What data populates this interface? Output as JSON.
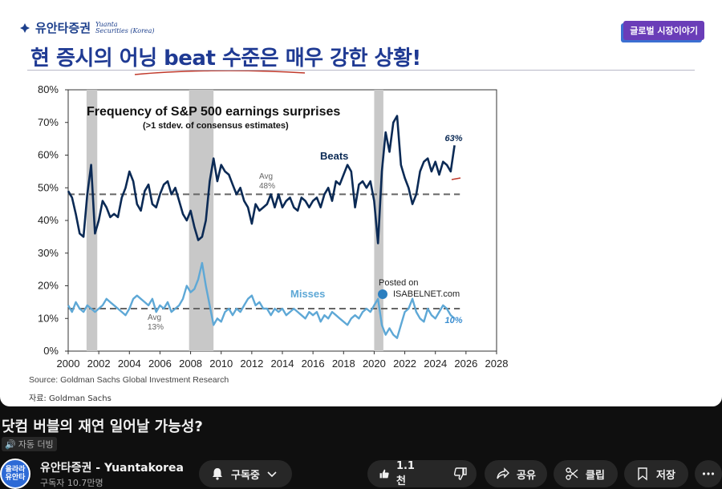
{
  "slide": {
    "logo_name": "유안타증권",
    "logo_en_1": "Yuanta",
    "logo_en_2": "Securities (Korea)",
    "badge": "글로벌 시장이야기",
    "headline": "현 증시의 어닝 beat 수준은 매우 강한 상황!",
    "source_note": "자료: Goldman Sachs"
  },
  "chart_data": {
    "type": "line",
    "title": "Frequency of S&P 500 earnings surprises",
    "subtitle": "(>1 stdev. of consensus estimates)",
    "source": "Source: Goldman Sachs Global Investment Research",
    "watermark_1": "Posted on",
    "watermark_2": "ISABELNET.com",
    "xlim": [
      2000,
      2028
    ],
    "ylim": [
      0,
      80
    ],
    "x_ticks": [
      "2000",
      "2002",
      "2004",
      "2006",
      "2008",
      "2010",
      "2012",
      "2014",
      "2016",
      "2018",
      "2020",
      "2022",
      "2024",
      "2026",
      "2028"
    ],
    "y_ticks": [
      "0%",
      "10%",
      "20%",
      "30%",
      "40%",
      "50%",
      "60%",
      "70%",
      "80%"
    ],
    "recessions": [
      [
        2001.2,
        2001.9
      ],
      [
        2007.9,
        2009.5
      ],
      [
        2020.0,
        2020.6
      ]
    ],
    "series": [
      {
        "name": "Beats",
        "color": "#0b2a55",
        "end_label": "63%",
        "avg": 48,
        "avg_label_1": "Avg",
        "avg_label_2": "48%",
        "points": [
          [
            2000.0,
            49
          ],
          [
            2000.25,
            47
          ],
          [
            2000.5,
            42
          ],
          [
            2000.75,
            36
          ],
          [
            2001.0,
            35
          ],
          [
            2001.25,
            48
          ],
          [
            2001.5,
            57
          ],
          [
            2001.75,
            36
          ],
          [
            2002.0,
            40
          ],
          [
            2002.25,
            46
          ],
          [
            2002.5,
            44
          ],
          [
            2002.75,
            41
          ],
          [
            2003.0,
            42
          ],
          [
            2003.25,
            41
          ],
          [
            2003.5,
            47
          ],
          [
            2003.75,
            50
          ],
          [
            2004.0,
            55
          ],
          [
            2004.25,
            52
          ],
          [
            2004.5,
            45
          ],
          [
            2004.75,
            43
          ],
          [
            2005.0,
            49
          ],
          [
            2005.25,
            51
          ],
          [
            2005.5,
            45
          ],
          [
            2005.75,
            44
          ],
          [
            2006.0,
            48
          ],
          [
            2006.25,
            51
          ],
          [
            2006.5,
            52
          ],
          [
            2006.75,
            48
          ],
          [
            2007.0,
            50
          ],
          [
            2007.25,
            46
          ],
          [
            2007.5,
            42
          ],
          [
            2007.75,
            40
          ],
          [
            2008.0,
            43
          ],
          [
            2008.25,
            38
          ],
          [
            2008.5,
            34
          ],
          [
            2008.75,
            35
          ],
          [
            2009.0,
            40
          ],
          [
            2009.25,
            52
          ],
          [
            2009.5,
            59
          ],
          [
            2009.75,
            52
          ],
          [
            2010.0,
            57
          ],
          [
            2010.25,
            55
          ],
          [
            2010.5,
            54
          ],
          [
            2010.75,
            51
          ],
          [
            2011.0,
            48
          ],
          [
            2011.25,
            50
          ],
          [
            2011.5,
            46
          ],
          [
            2011.75,
            44
          ],
          [
            2012.0,
            39
          ],
          [
            2012.25,
            45
          ],
          [
            2012.5,
            43
          ],
          [
            2012.75,
            44
          ],
          [
            2013.0,
            45
          ],
          [
            2013.25,
            48
          ],
          [
            2013.5,
            44
          ],
          [
            2013.75,
            48
          ],
          [
            2014.0,
            44
          ],
          [
            2014.25,
            46
          ],
          [
            2014.5,
            47
          ],
          [
            2014.75,
            44
          ],
          [
            2015.0,
            43
          ],
          [
            2015.25,
            47
          ],
          [
            2015.5,
            46
          ],
          [
            2015.75,
            44
          ],
          [
            2016.0,
            46
          ],
          [
            2016.25,
            47
          ],
          [
            2016.5,
            44
          ],
          [
            2016.75,
            48
          ],
          [
            2017.0,
            50
          ],
          [
            2017.25,
            46
          ],
          [
            2017.5,
            52
          ],
          [
            2017.75,
            51
          ],
          [
            2018.0,
            54
          ],
          [
            2018.25,
            57
          ],
          [
            2018.5,
            55
          ],
          [
            2018.75,
            44
          ],
          [
            2019.0,
            51
          ],
          [
            2019.25,
            52
          ],
          [
            2019.5,
            50
          ],
          [
            2019.75,
            52
          ],
          [
            2020.0,
            46
          ],
          [
            2020.25,
            33
          ],
          [
            2020.5,
            55
          ],
          [
            2020.75,
            67
          ],
          [
            2021.0,
            61
          ],
          [
            2021.25,
            70
          ],
          [
            2021.5,
            72
          ],
          [
            2021.75,
            57
          ],
          [
            2022.0,
            53
          ],
          [
            2022.25,
            50
          ],
          [
            2022.5,
            45
          ],
          [
            2022.75,
            48
          ],
          [
            2023.0,
            55
          ],
          [
            2023.25,
            58
          ],
          [
            2023.5,
            59
          ],
          [
            2023.75,
            55
          ],
          [
            2024.0,
            58
          ],
          [
            2024.25,
            54
          ],
          [
            2024.5,
            58
          ],
          [
            2024.75,
            57
          ],
          [
            2025.0,
            55
          ],
          [
            2025.25,
            63
          ]
        ]
      },
      {
        "name": "Misses",
        "color": "#5ea8d6",
        "end_label": "10%",
        "avg": 13,
        "avg_label_1": "Avg",
        "avg_label_2": "13%",
        "points": [
          [
            2000.0,
            14
          ],
          [
            2000.25,
            12
          ],
          [
            2000.5,
            15
          ],
          [
            2000.75,
            13
          ],
          [
            2001.0,
            12
          ],
          [
            2001.25,
            14
          ],
          [
            2001.5,
            13
          ],
          [
            2001.75,
            12
          ],
          [
            2002.0,
            13
          ],
          [
            2002.25,
            14
          ],
          [
            2002.5,
            16
          ],
          [
            2002.75,
            15
          ],
          [
            2003.0,
            14
          ],
          [
            2003.25,
            13
          ],
          [
            2003.5,
            12
          ],
          [
            2003.75,
            11
          ],
          [
            2004.0,
            13
          ],
          [
            2004.25,
            16
          ],
          [
            2004.5,
            17
          ],
          [
            2004.75,
            16
          ],
          [
            2005.0,
            15
          ],
          [
            2005.25,
            14
          ],
          [
            2005.5,
            16
          ],
          [
            2005.75,
            12
          ],
          [
            2006.0,
            14
          ],
          [
            2006.25,
            13
          ],
          [
            2006.5,
            15
          ],
          [
            2006.75,
            12
          ],
          [
            2007.0,
            13
          ],
          [
            2007.25,
            14
          ],
          [
            2007.5,
            16
          ],
          [
            2007.75,
            20
          ],
          [
            2008.0,
            18
          ],
          [
            2008.25,
            19
          ],
          [
            2008.5,
            22
          ],
          [
            2008.75,
            27
          ],
          [
            2009.0,
            20
          ],
          [
            2009.25,
            14
          ],
          [
            2009.5,
            8
          ],
          [
            2009.75,
            10
          ],
          [
            2010.0,
            9
          ],
          [
            2010.25,
            12
          ],
          [
            2010.5,
            13
          ],
          [
            2010.75,
            11
          ],
          [
            2011.0,
            13
          ],
          [
            2011.25,
            12
          ],
          [
            2011.5,
            14
          ],
          [
            2011.75,
            16
          ],
          [
            2012.0,
            17
          ],
          [
            2012.25,
            14
          ],
          [
            2012.5,
            15
          ],
          [
            2012.75,
            13
          ],
          [
            2013.0,
            13
          ],
          [
            2013.25,
            11
          ],
          [
            2013.5,
            13
          ],
          [
            2013.75,
            12
          ],
          [
            2014.0,
            13
          ],
          [
            2014.25,
            11
          ],
          [
            2014.5,
            12
          ],
          [
            2014.75,
            13
          ],
          [
            2015.0,
            12
          ],
          [
            2015.25,
            11
          ],
          [
            2015.5,
            10
          ],
          [
            2015.75,
            12
          ],
          [
            2016.0,
            11
          ],
          [
            2016.25,
            12
          ],
          [
            2016.5,
            9
          ],
          [
            2016.75,
            11
          ],
          [
            2017.0,
            10
          ],
          [
            2017.25,
            12
          ],
          [
            2017.5,
            11
          ],
          [
            2017.75,
            10
          ],
          [
            2018.0,
            9
          ],
          [
            2018.25,
            8
          ],
          [
            2018.5,
            10
          ],
          [
            2018.75,
            11
          ],
          [
            2019.0,
            10
          ],
          [
            2019.25,
            12
          ],
          [
            2019.5,
            13
          ],
          [
            2019.75,
            12
          ],
          [
            2020.0,
            14
          ],
          [
            2020.25,
            16
          ],
          [
            2020.5,
            8
          ],
          [
            2020.75,
            5
          ],
          [
            2021.0,
            7
          ],
          [
            2021.25,
            5
          ],
          [
            2021.5,
            4
          ],
          [
            2021.75,
            8
          ],
          [
            2022.0,
            12
          ],
          [
            2022.25,
            13
          ],
          [
            2022.5,
            16
          ],
          [
            2022.75,
            12
          ],
          [
            2023.0,
            10
          ],
          [
            2023.25,
            9
          ],
          [
            2023.5,
            13
          ],
          [
            2023.75,
            11
          ],
          [
            2024.0,
            10
          ],
          [
            2024.25,
            12
          ],
          [
            2024.5,
            14
          ],
          [
            2024.75,
            13
          ],
          [
            2025.0,
            11
          ],
          [
            2025.25,
            10
          ]
        ]
      }
    ]
  },
  "video": {
    "title": "닷컴 버블의 재연 일어날 가능성?",
    "dub_label": "자동 더빙",
    "avatar_text": "올라라 유안타",
    "channel_name": "유안타증권 - Yuantakorea",
    "subscribers": "구독자 10.7만명",
    "subscribe_label": "구독중",
    "like_count": "1.1천",
    "share_label": "공유",
    "clip_label": "클립",
    "save_label": "저장"
  }
}
